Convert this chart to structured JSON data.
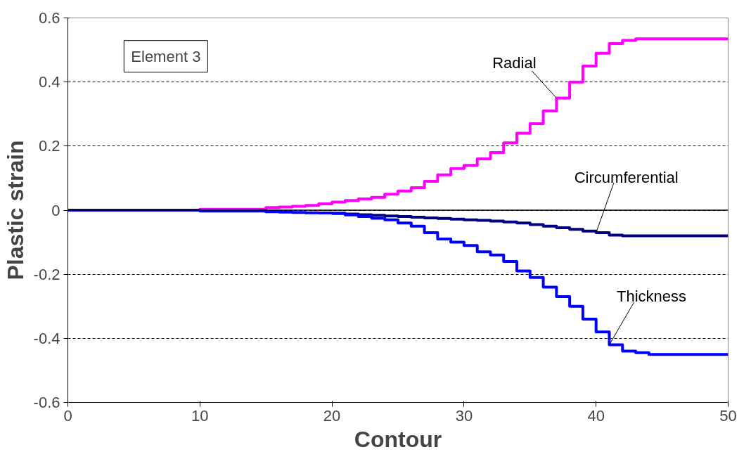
{
  "chart_data": {
    "type": "step",
    "xlabel": "Contour",
    "ylabel": "Plastic strain",
    "x": [
      0,
      5,
      10,
      15,
      16,
      17,
      18,
      19,
      20,
      21,
      22,
      23,
      24,
      25,
      26,
      27,
      28,
      29,
      30,
      31,
      32,
      33,
      34,
      35,
      36,
      37,
      38,
      39,
      40,
      41,
      42,
      43,
      44,
      50
    ],
    "series": [
      {
        "name": "Radial",
        "color": "#ff00ff",
        "values": [
          0,
          0,
          0.003,
          0.008,
          0.01,
          0.012,
          0.015,
          0.02,
          0.025,
          0.03,
          0.035,
          0.04,
          0.05,
          0.06,
          0.07,
          0.09,
          0.11,
          0.13,
          0.14,
          0.16,
          0.18,
          0.21,
          0.24,
          0.27,
          0.31,
          0.35,
          0.4,
          0.45,
          0.49,
          0.52,
          0.53,
          0.535,
          0.535,
          0.535
        ]
      },
      {
        "name": "Circumferential",
        "color": "#000080",
        "x": [
          20,
          21,
          22,
          23,
          24,
          25,
          26,
          27,
          28,
          29,
          30,
          31,
          32,
          33,
          34,
          35,
          36,
          37,
          38,
          39,
          40,
          41,
          42,
          43,
          44,
          50
        ],
        "values": [
          -0.01,
          -0.012,
          -0.014,
          -0.016,
          -0.018,
          -0.02,
          -0.022,
          -0.024,
          -0.026,
          -0.028,
          -0.03,
          -0.032,
          -0.034,
          -0.037,
          -0.04,
          -0.045,
          -0.05,
          -0.055,
          -0.06,
          -0.065,
          -0.07,
          -0.078,
          -0.08,
          -0.08,
          -0.08,
          -0.08
        ]
      },
      {
        "name": "Thickness",
        "color": "#0000ff",
        "values": [
          0,
          0,
          -0.003,
          -0.005,
          -0.006,
          -0.007,
          -0.008,
          -0.009,
          -0.01,
          -0.015,
          -0.02,
          -0.025,
          -0.03,
          -0.04,
          -0.05,
          -0.07,
          -0.09,
          -0.1,
          -0.11,
          -0.13,
          -0.14,
          -0.16,
          -0.19,
          -0.21,
          -0.24,
          -0.27,
          -0.3,
          -0.34,
          -0.38,
          -0.42,
          -0.44,
          -0.445,
          -0.45,
          -0.45
        ]
      }
    ],
    "annotations": [
      "Element 3"
    ],
    "xlim": [
      0,
      50
    ],
    "xticks": [
      0,
      10,
      20,
      30,
      40,
      50
    ],
    "ylim": [
      -0.6,
      0.6
    ],
    "yticks": [
      -0.6,
      -0.4,
      -0.2,
      0,
      0.2,
      0.4,
      0.6
    ],
    "ref_lines": [
      {
        "axis": "y",
        "value": 0,
        "color": "#000000"
      }
    ],
    "grid": "y",
    "line_style": "solid",
    "marker": "none"
  }
}
